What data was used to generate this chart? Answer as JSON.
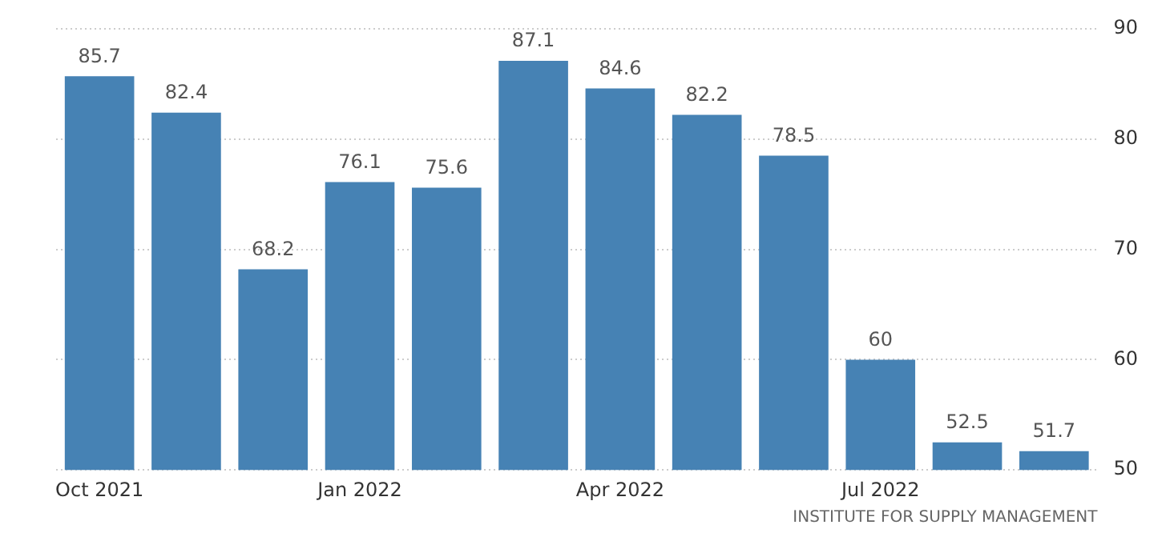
{
  "chart_data": {
    "type": "bar",
    "categories": [
      "Oct 2021",
      null,
      null,
      "Jan 2022",
      null,
      null,
      "Apr 2022",
      null,
      null,
      "Jul 2022",
      null,
      null
    ],
    "values": [
      85.7,
      82.4,
      68.2,
      76.1,
      75.6,
      87.1,
      84.6,
      82.2,
      78.5,
      60,
      52.5,
      51.7
    ],
    "color": "#4682b4",
    "ylim": [
      50,
      90
    ],
    "yticks": [
      50,
      60,
      70,
      80,
      90
    ],
    "grid": "y",
    "data_labels": true,
    "legend": false,
    "annotations": [
      "INSTITUTE FOR SUPPLY MANAGEMENT"
    ]
  }
}
